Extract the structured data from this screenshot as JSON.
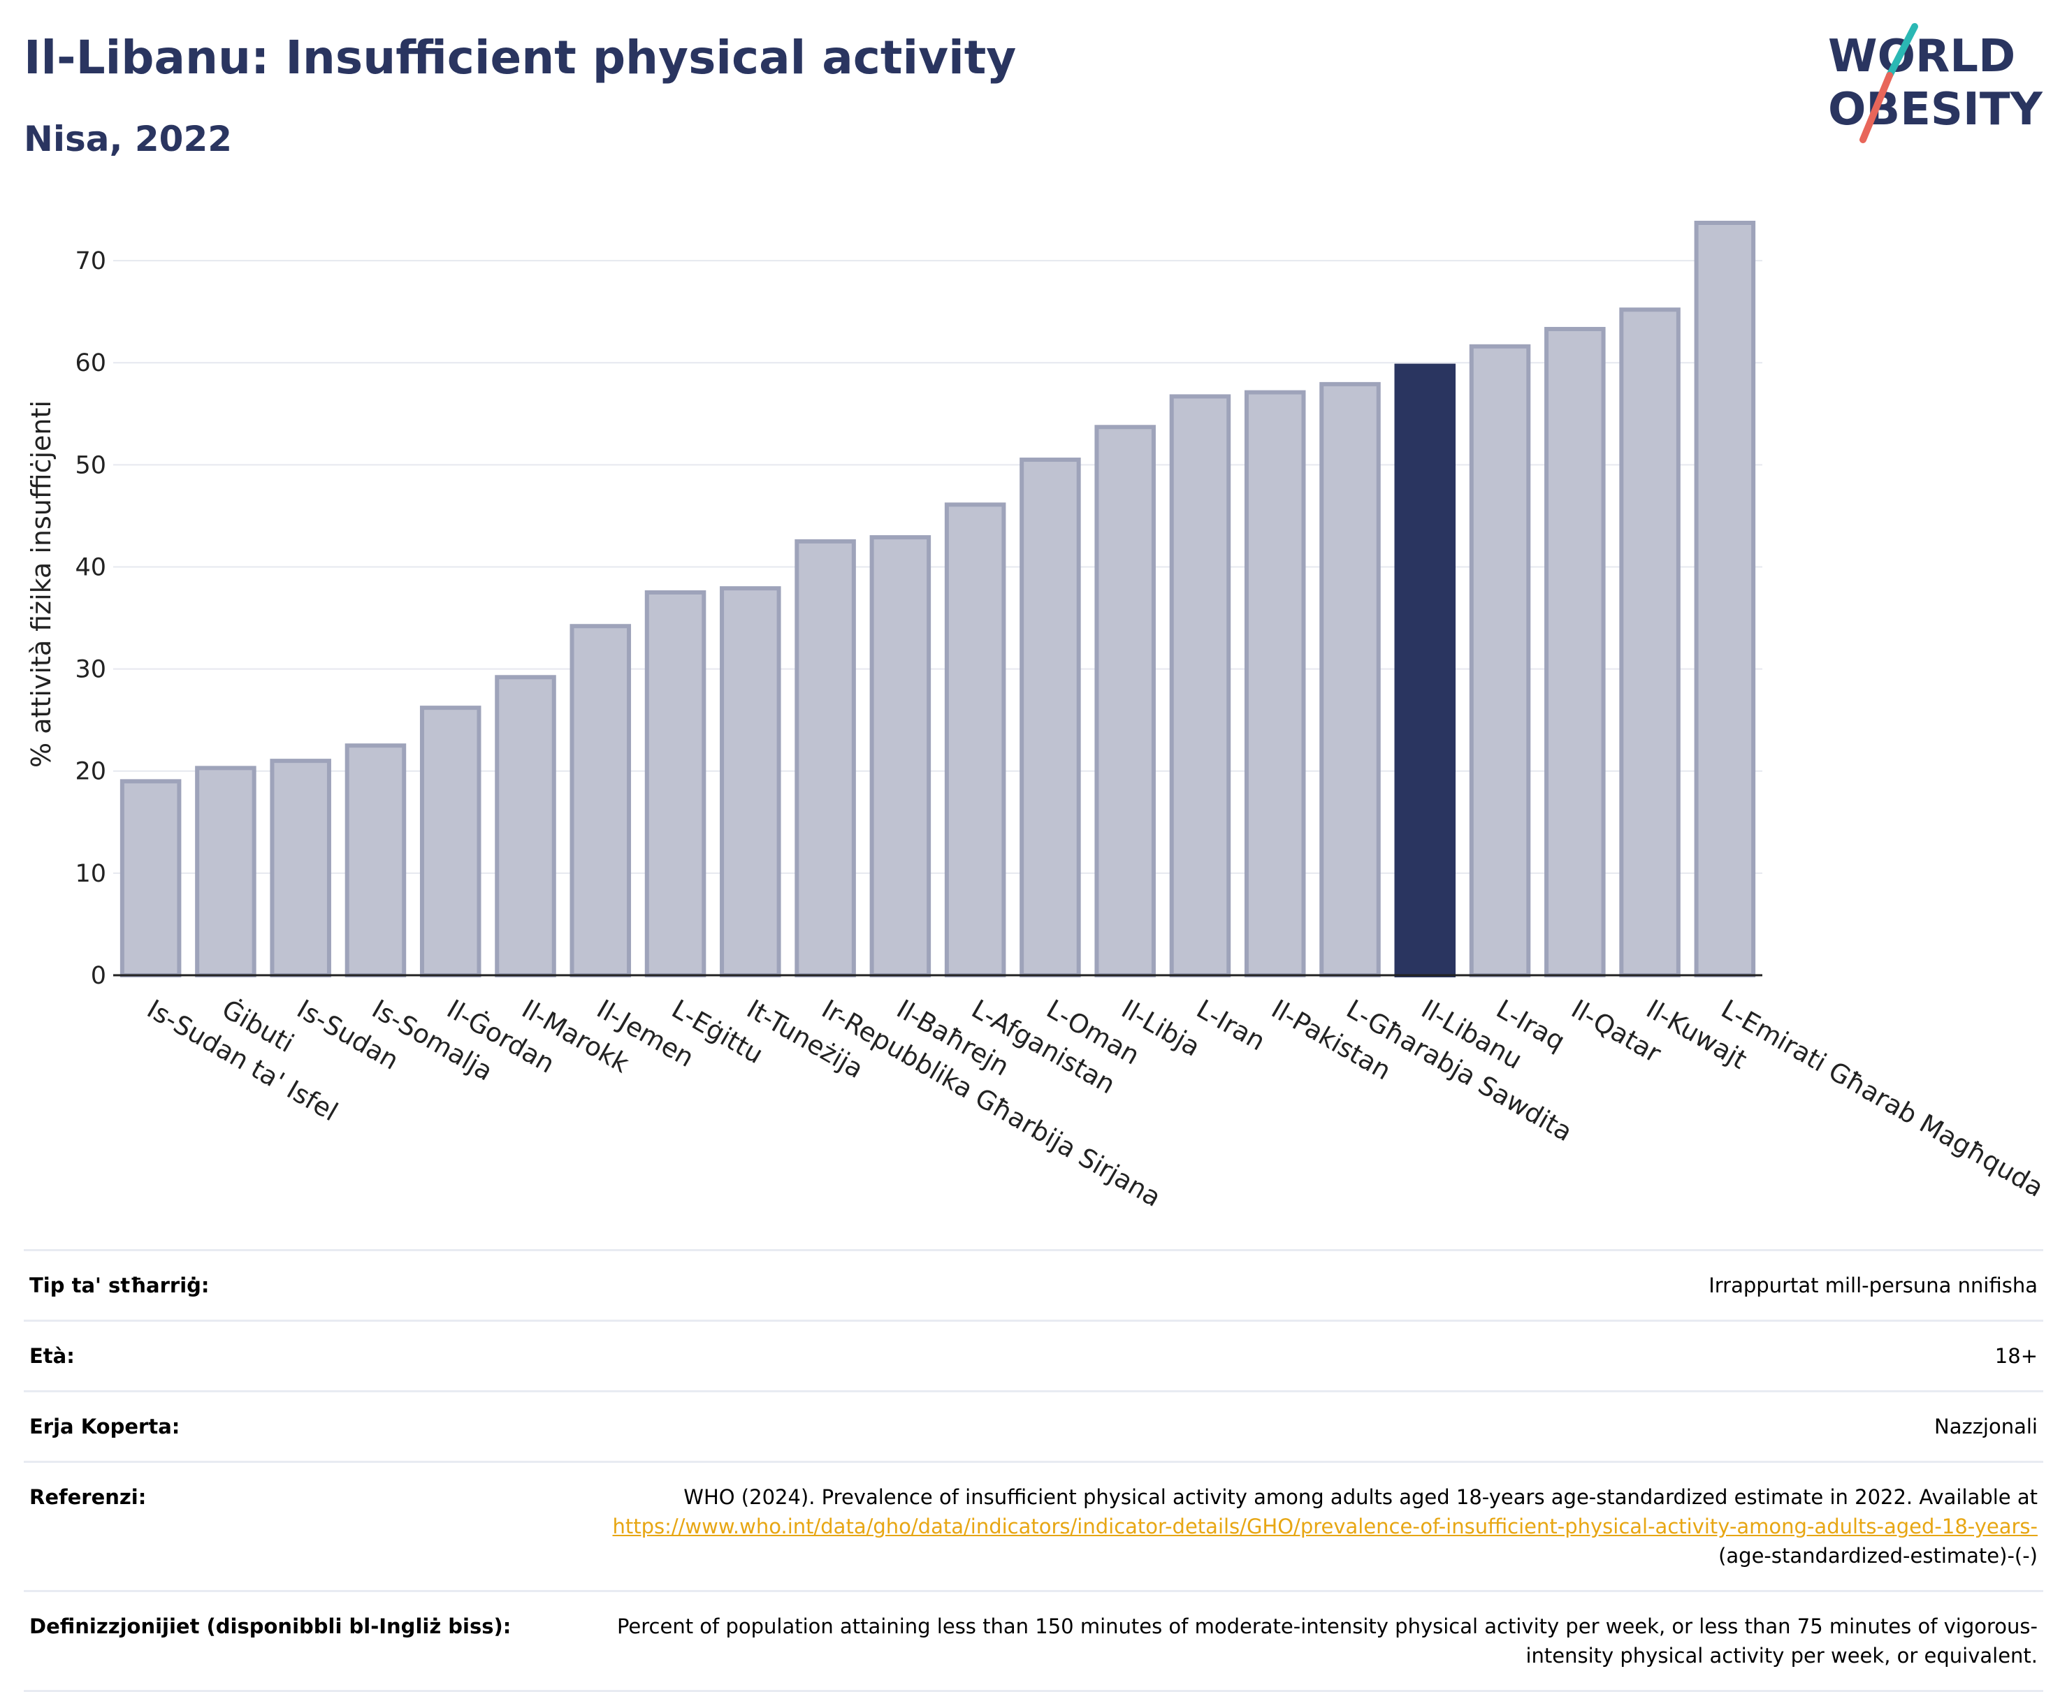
{
  "header": {
    "title": "Il-Libanu: Insufficient physical activity",
    "subtitle": "Nisa, 2022"
  },
  "logo": {
    "line1": "WORLD",
    "line2": "OBESITY"
  },
  "colors": {
    "title": "#2a3560",
    "bar": "#bfc2d1",
    "bar_stroke": "#9ea3ba",
    "highlight": "#2a3560",
    "link": "#e7a613",
    "logo_teal": "#2bb8b4",
    "logo_coral": "#e8665a"
  },
  "chart_data": {
    "type": "bar",
    "title": "",
    "xlabel": "",
    "ylabel": "% attività fiżika insuffiċjenti",
    "ylim": [
      0,
      75
    ],
    "yticks": [
      0,
      10,
      20,
      30,
      40,
      50,
      60,
      70
    ],
    "grid": true,
    "highlight": "Il-Libanu",
    "categories": [
      "Is-Sudan ta' Isfel",
      "Ġibuti",
      "Is-Sudan",
      "Is-Somalja",
      "Il-Ġordan",
      "Il-Marokk",
      "Il-Jemen",
      "L-Eġittu",
      "It-Tuneżija",
      "Ir-Repubblika Għarbija Sirjana",
      "Il-Baħrejn",
      "L-Afganistan",
      "L-Oman",
      "Il-Libja",
      "L-Iran",
      "Il-Pakistan",
      "L-Għarabja Sawdita",
      "Il-Libanu",
      "L-Iraq",
      "Il-Qatar",
      "Il-Kuwajt",
      "L-Emirati Għarab Magħquda"
    ],
    "values": [
      19.0,
      20.3,
      21.0,
      22.5,
      26.2,
      29.2,
      34.2,
      37.5,
      37.9,
      42.5,
      42.9,
      46.1,
      50.5,
      53.7,
      56.7,
      57.1,
      57.9,
      59.7,
      61.6,
      63.3,
      65.2,
      73.7
    ]
  },
  "info": {
    "rows": [
      {
        "key": "Tip ta' stħarriġ:",
        "value": "Irrappurtat mill-persuna nnifisha"
      },
      {
        "key": "Età:",
        "value": "18+"
      },
      {
        "key": "Erja Koperta:",
        "value": "Nazzjonali"
      }
    ],
    "reference": {
      "key": "Referenzi:",
      "text": "WHO (2024). Prevalence of insufficient physical activity among adults aged 18-years age-standardized estimate in 2022. Available at",
      "link": "https://www.who.int/data/gho/data/indicators/indicator-details/GHO/prevalence-of-insufficient-physical-activity-among-adults-aged-18-years-",
      "suffix": "(age-standardized-estimate)-(-)"
    },
    "definition": {
      "key": "Definizzjonijiet (disponibbli bl-Ingliż biss):",
      "value": "Percent of population attaining less than 150 minutes of moderate-intensity physical activity per week, or less than 75 minutes of vigorous-intensity physical activity per week, or equivalent."
    }
  }
}
